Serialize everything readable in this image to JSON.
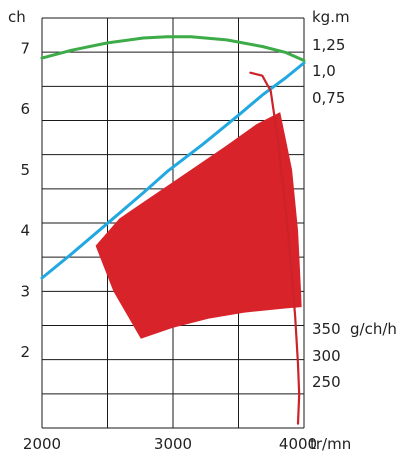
{
  "chart_data": {
    "type": "line",
    "left_axis": {
      "label": "ch",
      "ticks": [
        {
          "label": "7",
          "value": 7
        },
        {
          "label": "6",
          "value": 6
        },
        {
          "label": "5",
          "value": 5
        },
        {
          "label": "4",
          "value": 4
        },
        {
          "label": "3",
          "value": 3
        },
        {
          "label": "2",
          "value": 2
        }
      ],
      "range": [
        0.75,
        7.5
      ]
    },
    "right_axis_torque": {
      "label": "kg.m",
      "ticks": [
        {
          "label": "1,25",
          "value": 1.25
        },
        {
          "label": "1,0",
          "value": 1.0
        },
        {
          "label": "0,75",
          "value": 0.75
        }
      ]
    },
    "right_axis_consumption": {
      "unit": "g/ch/h",
      "ticks": [
        {
          "label": "350",
          "value": 350
        },
        {
          "label": "300",
          "value": 300
        },
        {
          "label": "250",
          "value": 250
        }
      ]
    },
    "x_axis": {
      "label": "tr/mn",
      "ticks": [
        {
          "label": "2000",
          "value": 2000
        },
        {
          "label": "3000",
          "value": 3000
        },
        {
          "label": "4000",
          "value": 4000
        }
      ],
      "range": [
        1950,
        4150
      ]
    },
    "grid": true,
    "series": [
      {
        "color": "#22a8e0",
        "x": [
          1950,
          2200,
          2500,
          2800,
          3000,
          3300,
          3600,
          3800,
          4000,
          4150
        ],
        "y": [
          3.22,
          3.62,
          4.12,
          4.62,
          4.97,
          5.42,
          5.9,
          6.23,
          6.52,
          6.76
        ]
      },
      {
        "color": "#3cab48",
        "x": [
          1950,
          2200,
          2500,
          2800,
          3000,
          3200,
          3500,
          3800,
          4000,
          4150
        ],
        "y": [
          6.84,
          6.97,
          7.09,
          7.17,
          7.19,
          7.19,
          7.14,
          7.03,
          6.93,
          6.8
        ]
      },
      {
        "color": "#cc2229",
        "x": [
          3700,
          3800,
          3870,
          3930,
          4000,
          4050,
          4075,
          4100,
          4110,
          4100
        ],
        "y": [
          6.6,
          6.55,
          6.3,
          5.5,
          4.3,
          3.2,
          2.6,
          1.8,
          1.3,
          0.82
        ]
      }
    ],
    "areas": [
      {
        "color": "#d8232a",
        "upper": {
          "x": [
            2400,
            2600,
            2900,
            3200,
            3500,
            3750,
            3950
          ],
          "y": [
            3.75,
            4.2,
            4.6,
            5.0,
            5.4,
            5.75,
            5.95
          ]
        },
        "lower": {
          "x": [
            2400,
            2550,
            2780,
            3050,
            3350,
            3650,
            4000,
            4130
          ],
          "y": [
            3.75,
            3.0,
            2.22,
            2.4,
            2.55,
            2.65,
            2.72,
            2.74
          ]
        },
        "right_x": [
          4050,
          4100,
          4125
        ]
      }
    ]
  }
}
